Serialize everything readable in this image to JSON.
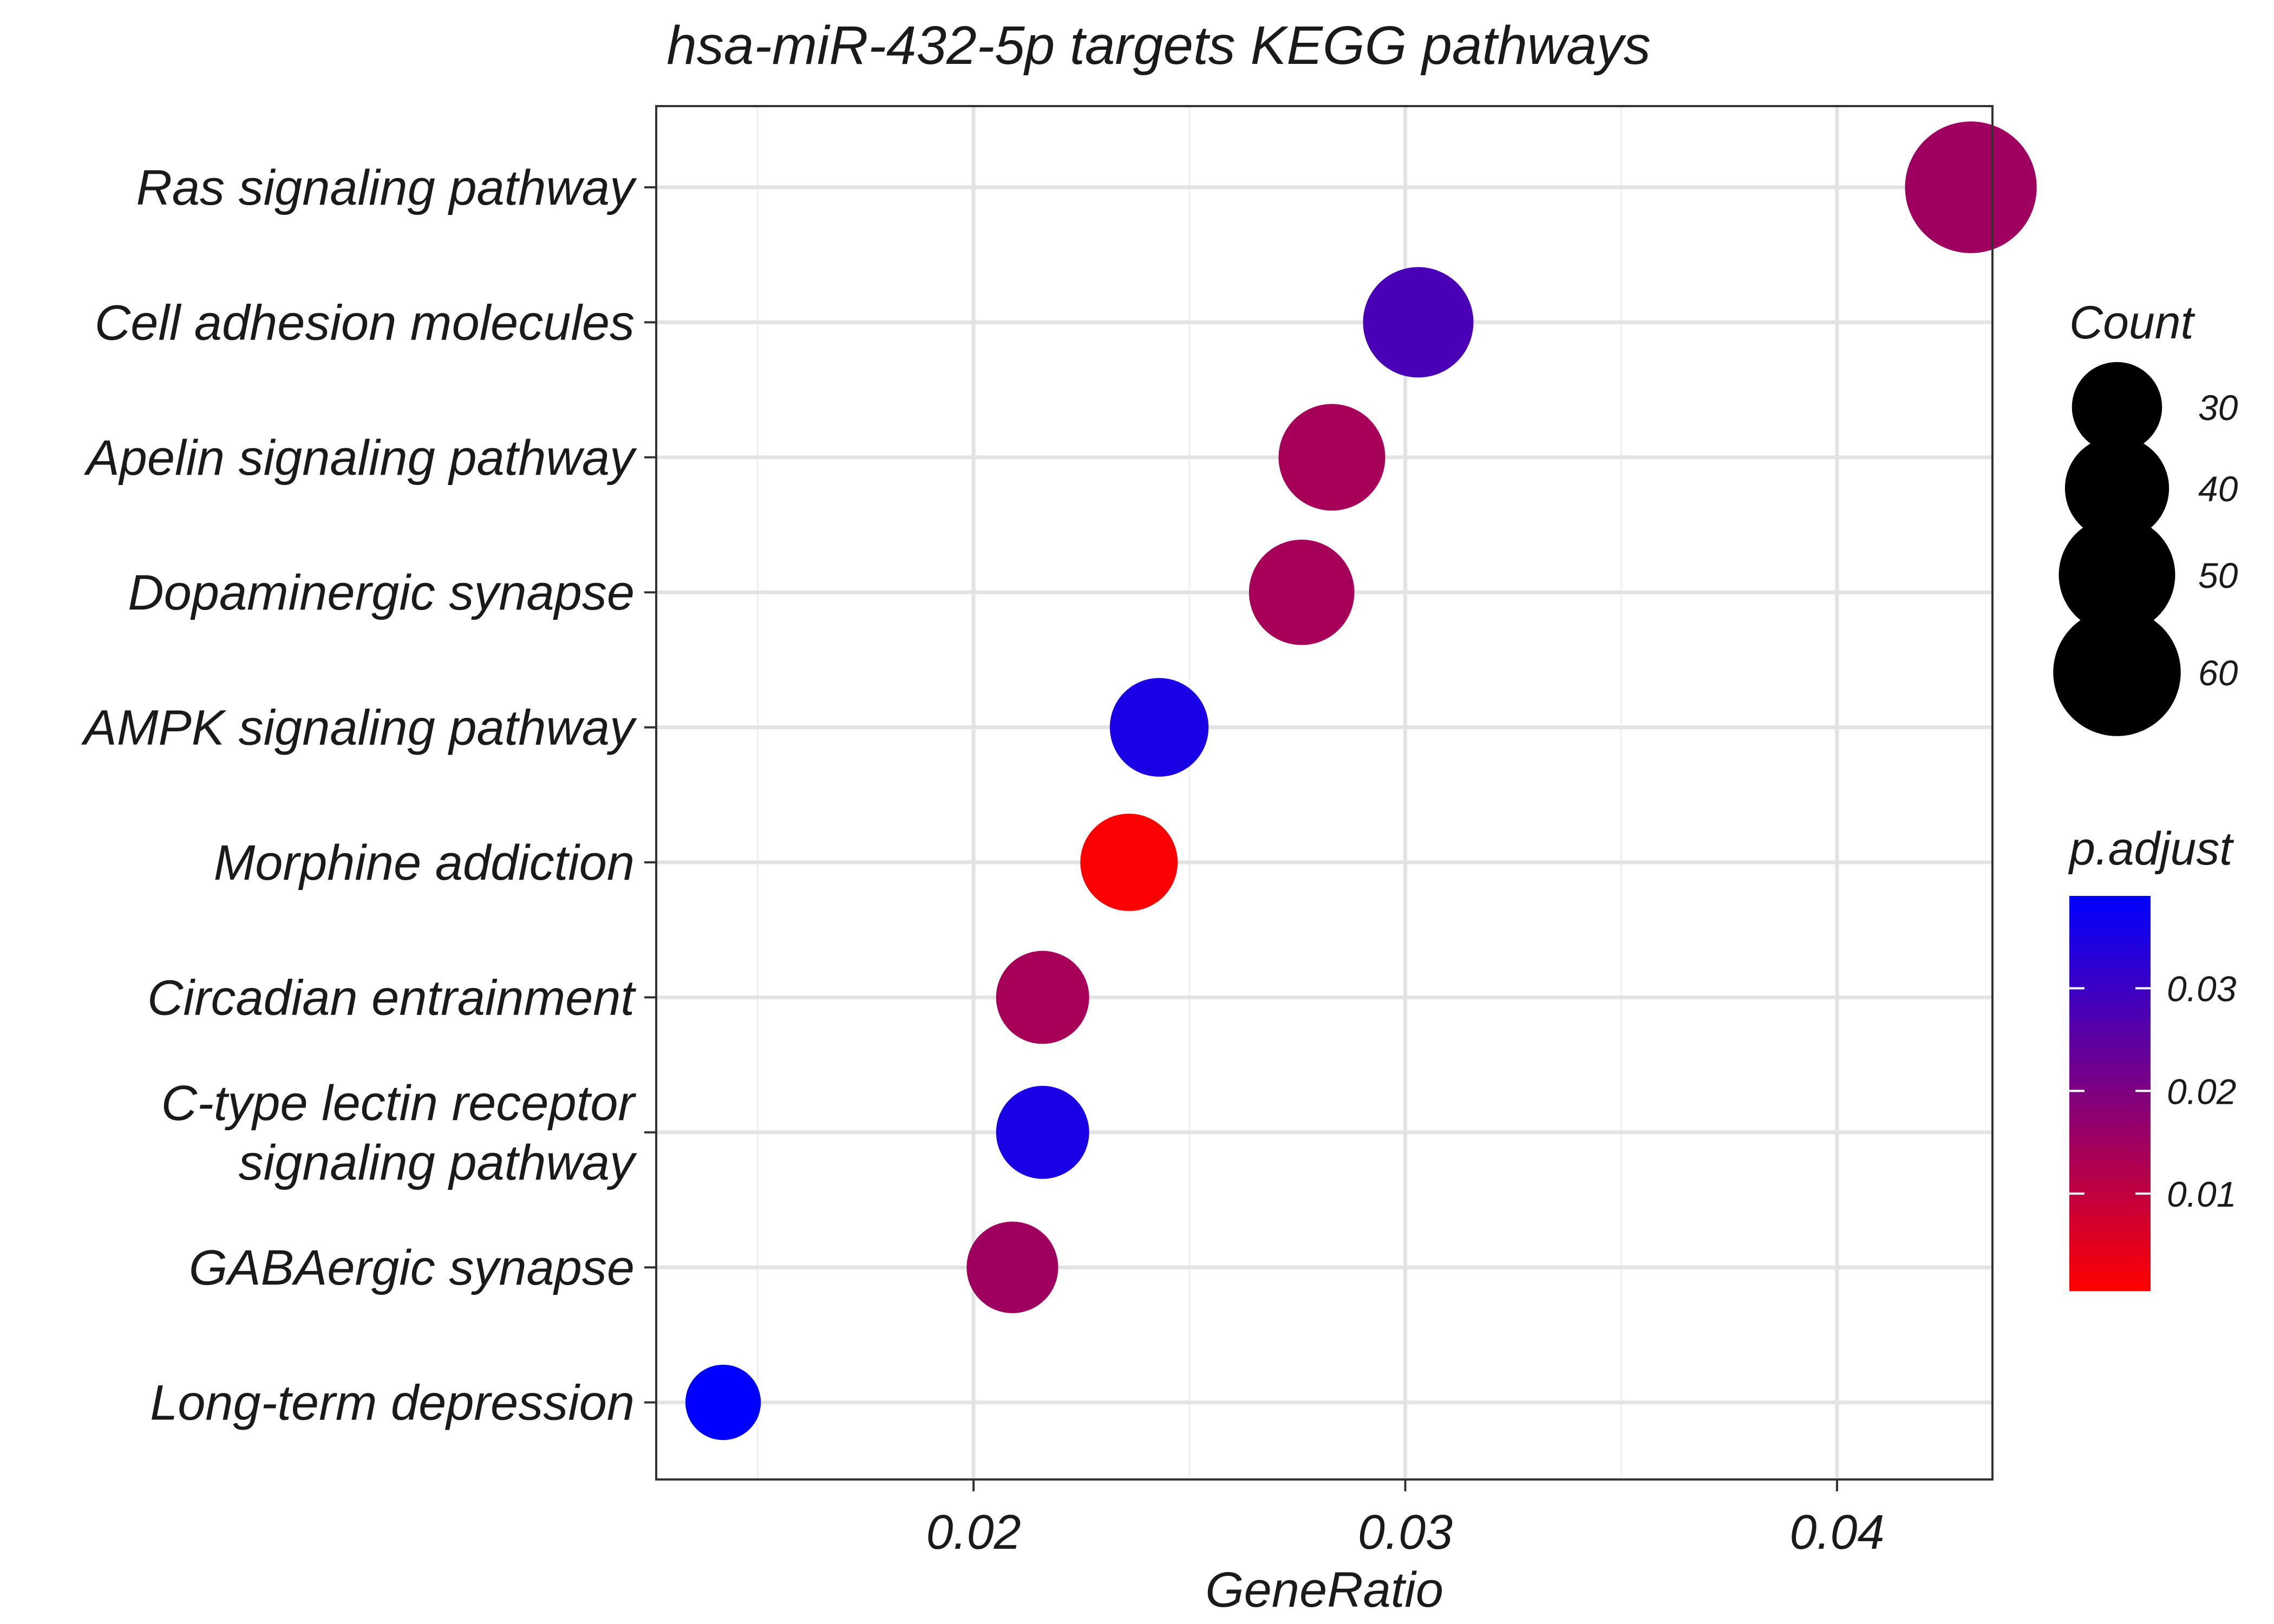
{
  "chart_data": {
    "type": "scatter",
    "title": "hsa-miR-432-5p targets KEGG pathways",
    "xlabel": "GeneRatio",
    "ylabel": "",
    "xlim": [
      0.01265,
      0.0436
    ],
    "xticks": [
      0.02,
      0.03,
      0.04
    ],
    "xtick_labels": [
      "0.02",
      "0.03",
      "0.04"
    ],
    "grid": true,
    "categories": [
      [
        "Ras signaling pathway"
      ],
      [
        "Cell adhesion molecules"
      ],
      [
        "Apelin signaling pathway"
      ],
      [
        "Dopaminergic synapse"
      ],
      [
        "AMPK signaling pathway"
      ],
      [
        "Morphine addiction"
      ],
      [
        "Circadian entrainment"
      ],
      [
        "C-type lectin receptor",
        "signaling pathway"
      ],
      [
        "GABAergic synapse"
      ],
      [
        "Long-term depression"
      ]
    ],
    "points": [
      {
        "pathway": "Ras signaling pathway",
        "gene_ratio": 0.0431,
        "count": 64,
        "p_adjust": 0.015
      },
      {
        "pathway": "Cell adhesion molecules",
        "gene_ratio": 0.0303,
        "count": 45,
        "p_adjust": 0.028
      },
      {
        "pathway": "Apelin signaling pathway",
        "gene_ratio": 0.0283,
        "count": 42,
        "p_adjust": 0.014
      },
      {
        "pathway": "Dopaminergic synapse",
        "gene_ratio": 0.0276,
        "count": 41,
        "p_adjust": 0.014
      },
      {
        "pathway": "AMPK signaling pathway",
        "gene_ratio": 0.0243,
        "count": 36,
        "p_adjust": 0.035
      },
      {
        "pathway": "Morphine addiction",
        "gene_ratio": 0.0236,
        "count": 35,
        "p_adjust": 0.001
      },
      {
        "pathway": "Circadian entrainment",
        "gene_ratio": 0.0216,
        "count": 32,
        "p_adjust": 0.014
      },
      {
        "pathway": "C-type lectin receptor signaling pathway",
        "gene_ratio": 0.0216,
        "count": 32,
        "p_adjust": 0.035
      },
      {
        "pathway": "GABAergic synapse",
        "gene_ratio": 0.0209,
        "count": 31,
        "p_adjust": 0.015
      },
      {
        "pathway": "Long-term depression",
        "gene_ratio": 0.0142,
        "count": 21,
        "p_adjust": 0.039
      }
    ],
    "size_legend": {
      "title": "Count",
      "values": [
        30,
        40,
        50,
        60
      ],
      "labels": [
        "30",
        "40",
        "50",
        "60"
      ]
    },
    "color_legend": {
      "title": "p.adjust",
      "range": [
        0.0005,
        0.039
      ],
      "low_color": "#ff0000",
      "high_color": "#0000ff",
      "ticks": [
        0.01,
        0.02,
        0.03
      ],
      "tick_labels": [
        "0.01",
        "0.02",
        "0.03"
      ]
    }
  }
}
